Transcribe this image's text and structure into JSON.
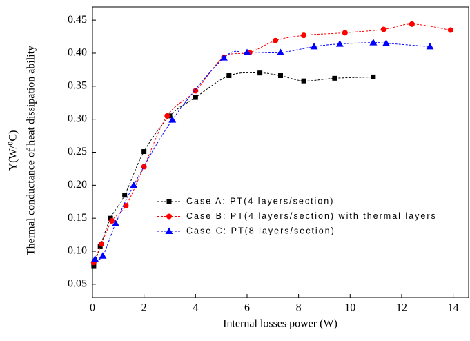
{
  "chart_data": {
    "type": "line",
    "xlabel": "Internal losses power (W)",
    "ylabel": [
      "Thermal conductance of heat dissipation ability",
      "Y(W/⁰C)"
    ],
    "xlim": [
      0,
      14.6
    ],
    "ylim": [
      0.03,
      0.47
    ],
    "xticks": [
      0,
      2,
      4,
      6,
      8,
      10,
      12,
      14
    ],
    "yticks": [
      0.05,
      {
        "value": 0.1,
        "label": "0.10"
      },
      0.15,
      {
        "value": 0.2,
        "label": "0.20"
      },
      0.25,
      {
        "value": 0.3,
        "label": "0.30"
      },
      0.35,
      {
        "value": 0.4,
        "label": "0.40"
      },
      0.45
    ],
    "series": [
      {
        "name": "Case A: PT(4 layers/section)",
        "color": "#000000",
        "marker": "square",
        "x": [
          0.05,
          0.3,
          0.7,
          1.25,
          2.0,
          3.0,
          4.0,
          5.3,
          6.5,
          7.3,
          8.2,
          9.4,
          10.9
        ],
        "values": [
          0.078,
          0.107,
          0.15,
          0.185,
          0.251,
          0.305,
          0.333,
          0.366,
          0.37,
          0.366,
          0.358,
          0.362,
          0.364
        ]
      },
      {
        "name": "Case B: PT(4 layers/section) with thermal layers",
        "color": "#ff0000",
        "marker": "circle",
        "x": [
          0.05,
          0.35,
          0.75,
          1.3,
          2.0,
          2.9,
          4.0,
          5.1,
          6.1,
          7.1,
          8.2,
          9.8,
          11.3,
          12.4,
          13.9
        ],
        "values": [
          0.083,
          0.111,
          0.146,
          0.169,
          0.228,
          0.305,
          0.343,
          0.394,
          0.401,
          0.419,
          0.427,
          0.431,
          0.436,
          0.444,
          0.435
        ]
      },
      {
        "name": "Case C: PT(8 layers/section)",
        "color": "#0000ff",
        "marker": "triangle",
        "x": [
          0.1,
          0.4,
          0.9,
          1.6,
          3.1,
          5.1,
          6.0,
          7.3,
          8.6,
          9.6,
          10.9,
          11.4,
          13.1
        ],
        "values": [
          0.088,
          0.093,
          0.142,
          0.2,
          0.299,
          0.393,
          0.401,
          0.401,
          0.41,
          0.414,
          0.416,
          0.415,
          0.41
        ]
      }
    ]
  }
}
